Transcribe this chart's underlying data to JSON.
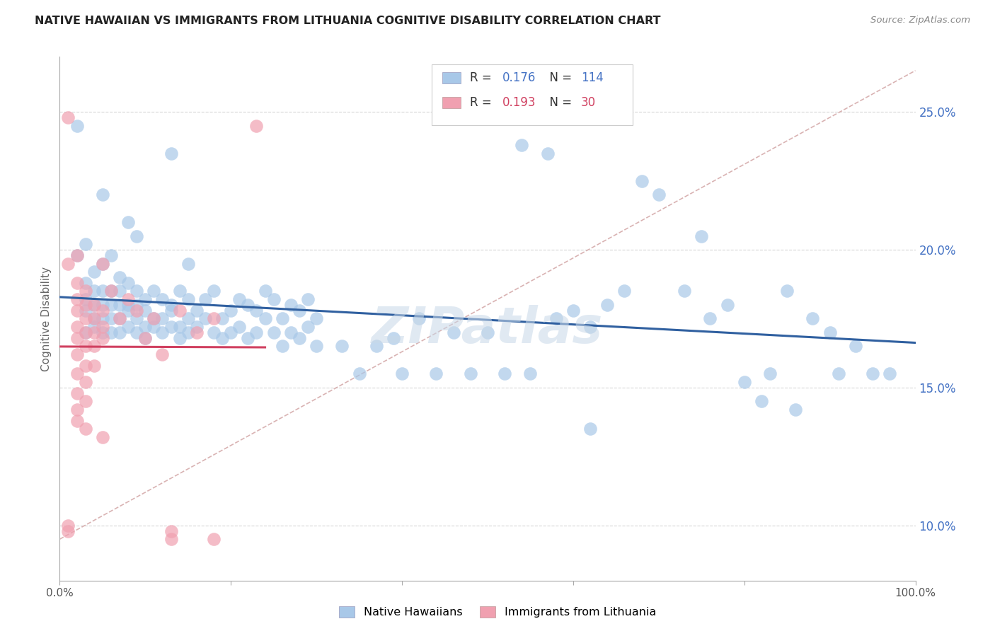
{
  "title": "NATIVE HAWAIIAN VS IMMIGRANTS FROM LITHUANIA COGNITIVE DISABILITY CORRELATION CHART",
  "source": "Source: ZipAtlas.com",
  "ylabel": "Cognitive Disability",
  "yticks": [
    10.0,
    15.0,
    20.0,
    25.0
  ],
  "ytick_labels": [
    "10.0%",
    "15.0%",
    "20.0%",
    "25.0%"
  ],
  "xlim": [
    0.0,
    100.0
  ],
  "ylim": [
    8.0,
    27.0
  ],
  "xticks": [
    0.0,
    20.0,
    40.0,
    60.0,
    80.0,
    100.0
  ],
  "xtick_labels": [
    "0.0%",
    "",
    "",
    "",
    "",
    "100.0%"
  ],
  "legend1_r": "0.176",
  "legend1_n": "114",
  "legend2_r": "0.193",
  "legend2_n": "30",
  "blue_color": "#A8C8E8",
  "pink_color": "#F0A0B0",
  "line_blue": "#3060A0",
  "line_pink": "#D04060",
  "line_dashed_color": "#D0A0A0",
  "blue_scatter": [
    [
      2,
      24.5
    ],
    [
      5,
      22.0
    ],
    [
      13,
      23.5
    ],
    [
      15,
      19.5
    ],
    [
      2,
      19.8
    ],
    [
      4,
      19.2
    ],
    [
      8,
      21.0
    ],
    [
      9,
      20.5
    ],
    [
      3,
      20.2
    ],
    [
      5,
      19.5
    ],
    [
      6,
      19.8
    ],
    [
      7,
      19.0
    ],
    [
      3,
      18.8
    ],
    [
      4,
      18.5
    ],
    [
      5,
      18.5
    ],
    [
      6,
      18.5
    ],
    [
      7,
      18.5
    ],
    [
      8,
      18.8
    ],
    [
      9,
      18.5
    ],
    [
      10,
      18.2
    ],
    [
      3,
      18.2
    ],
    [
      4,
      18.0
    ],
    [
      5,
      18.0
    ],
    [
      6,
      18.0
    ],
    [
      7,
      18.0
    ],
    [
      8,
      18.0
    ],
    [
      9,
      18.0
    ],
    [
      10,
      17.8
    ],
    [
      11,
      18.5
    ],
    [
      12,
      18.2
    ],
    [
      13,
      18.0
    ],
    [
      14,
      18.5
    ],
    [
      15,
      18.2
    ],
    [
      3,
      17.8
    ],
    [
      4,
      17.5
    ],
    [
      5,
      17.5
    ],
    [
      6,
      17.5
    ],
    [
      7,
      17.5
    ],
    [
      8,
      17.8
    ],
    [
      9,
      17.5
    ],
    [
      10,
      17.2
    ],
    [
      11,
      17.5
    ],
    [
      12,
      17.5
    ],
    [
      13,
      17.8
    ],
    [
      14,
      17.2
    ],
    [
      15,
      17.5
    ],
    [
      16,
      17.8
    ],
    [
      17,
      18.2
    ],
    [
      18,
      18.5
    ],
    [
      19,
      17.5
    ],
    [
      20,
      17.8
    ],
    [
      21,
      18.2
    ],
    [
      22,
      18.0
    ],
    [
      23,
      17.8
    ],
    [
      24,
      18.5
    ],
    [
      25,
      18.2
    ],
    [
      26,
      17.5
    ],
    [
      27,
      18.0
    ],
    [
      28,
      17.8
    ],
    [
      29,
      18.2
    ],
    [
      30,
      17.5
    ],
    [
      3,
      17.0
    ],
    [
      4,
      17.2
    ],
    [
      5,
      17.0
    ],
    [
      6,
      17.0
    ],
    [
      7,
      17.0
    ],
    [
      8,
      17.2
    ],
    [
      9,
      17.0
    ],
    [
      10,
      16.8
    ],
    [
      11,
      17.2
    ],
    [
      12,
      17.0
    ],
    [
      13,
      17.2
    ],
    [
      14,
      16.8
    ],
    [
      15,
      17.0
    ],
    [
      16,
      17.2
    ],
    [
      17,
      17.5
    ],
    [
      18,
      17.0
    ],
    [
      19,
      16.8
    ],
    [
      20,
      17.0
    ],
    [
      21,
      17.2
    ],
    [
      22,
      16.8
    ],
    [
      23,
      17.0
    ],
    [
      24,
      17.5
    ],
    [
      25,
      17.0
    ],
    [
      26,
      16.5
    ],
    [
      27,
      17.0
    ],
    [
      28,
      16.8
    ],
    [
      29,
      17.2
    ],
    [
      30,
      16.5
    ],
    [
      33,
      16.5
    ],
    [
      35,
      15.5
    ],
    [
      37,
      16.5
    ],
    [
      39,
      16.8
    ],
    [
      40,
      15.5
    ],
    [
      42,
      17.5
    ],
    [
      44,
      15.5
    ],
    [
      46,
      17.0
    ],
    [
      48,
      15.5
    ],
    [
      50,
      17.0
    ],
    [
      52,
      15.5
    ],
    [
      55,
      15.5
    ],
    [
      58,
      17.5
    ],
    [
      60,
      17.8
    ],
    [
      62,
      17.2
    ],
    [
      64,
      18.0
    ],
    [
      66,
      18.5
    ],
    [
      68,
      22.5
    ],
    [
      70,
      22.0
    ],
    [
      54,
      23.8
    ],
    [
      57,
      23.5
    ],
    [
      73,
      18.5
    ],
    [
      76,
      17.5
    ],
    [
      78,
      18.0
    ],
    [
      80,
      15.2
    ],
    [
      83,
      15.5
    ],
    [
      85,
      18.5
    ],
    [
      88,
      17.5
    ],
    [
      90,
      17.0
    ],
    [
      93,
      16.5
    ],
    [
      95,
      15.5
    ],
    [
      75,
      20.5
    ],
    [
      82,
      14.5
    ],
    [
      86,
      14.2
    ],
    [
      91,
      15.5
    ],
    [
      97,
      15.5
    ],
    [
      62,
      13.5
    ]
  ],
  "pink_scatter": [
    [
      1,
      24.8
    ],
    [
      1,
      19.5
    ],
    [
      2,
      19.8
    ],
    [
      5,
      19.5
    ],
    [
      2,
      18.8
    ],
    [
      3,
      18.5
    ],
    [
      6,
      18.5
    ],
    [
      8,
      18.2
    ],
    [
      2,
      18.2
    ],
    [
      3,
      18.0
    ],
    [
      4,
      18.0
    ],
    [
      2,
      17.8
    ],
    [
      3,
      17.5
    ],
    [
      4,
      17.5
    ],
    [
      5,
      17.8
    ],
    [
      7,
      17.5
    ],
    [
      9,
      17.8
    ],
    [
      11,
      17.5
    ],
    [
      14,
      17.8
    ],
    [
      2,
      17.2
    ],
    [
      3,
      17.0
    ],
    [
      4,
      17.0
    ],
    [
      5,
      17.2
    ],
    [
      2,
      16.8
    ],
    [
      3,
      16.5
    ],
    [
      4,
      16.5
    ],
    [
      5,
      16.8
    ],
    [
      2,
      16.2
    ],
    [
      3,
      15.8
    ],
    [
      4,
      15.8
    ],
    [
      2,
      15.5
    ],
    [
      3,
      15.2
    ],
    [
      2,
      14.8
    ],
    [
      3,
      14.5
    ],
    [
      2,
      14.2
    ],
    [
      2,
      13.8
    ],
    [
      3,
      13.5
    ],
    [
      5,
      13.2
    ],
    [
      1,
      9.8
    ],
    [
      13,
      9.5
    ],
    [
      23,
      24.5
    ],
    [
      18,
      17.5
    ],
    [
      16,
      17.0
    ],
    [
      12,
      16.2
    ],
    [
      10,
      16.8
    ],
    [
      1,
      10.0
    ],
    [
      13,
      9.8
    ],
    [
      18,
      9.5
    ]
  ],
  "watermark": "ZIPatlas",
  "background_color": "#ffffff",
  "grid_color": "#cccccc"
}
